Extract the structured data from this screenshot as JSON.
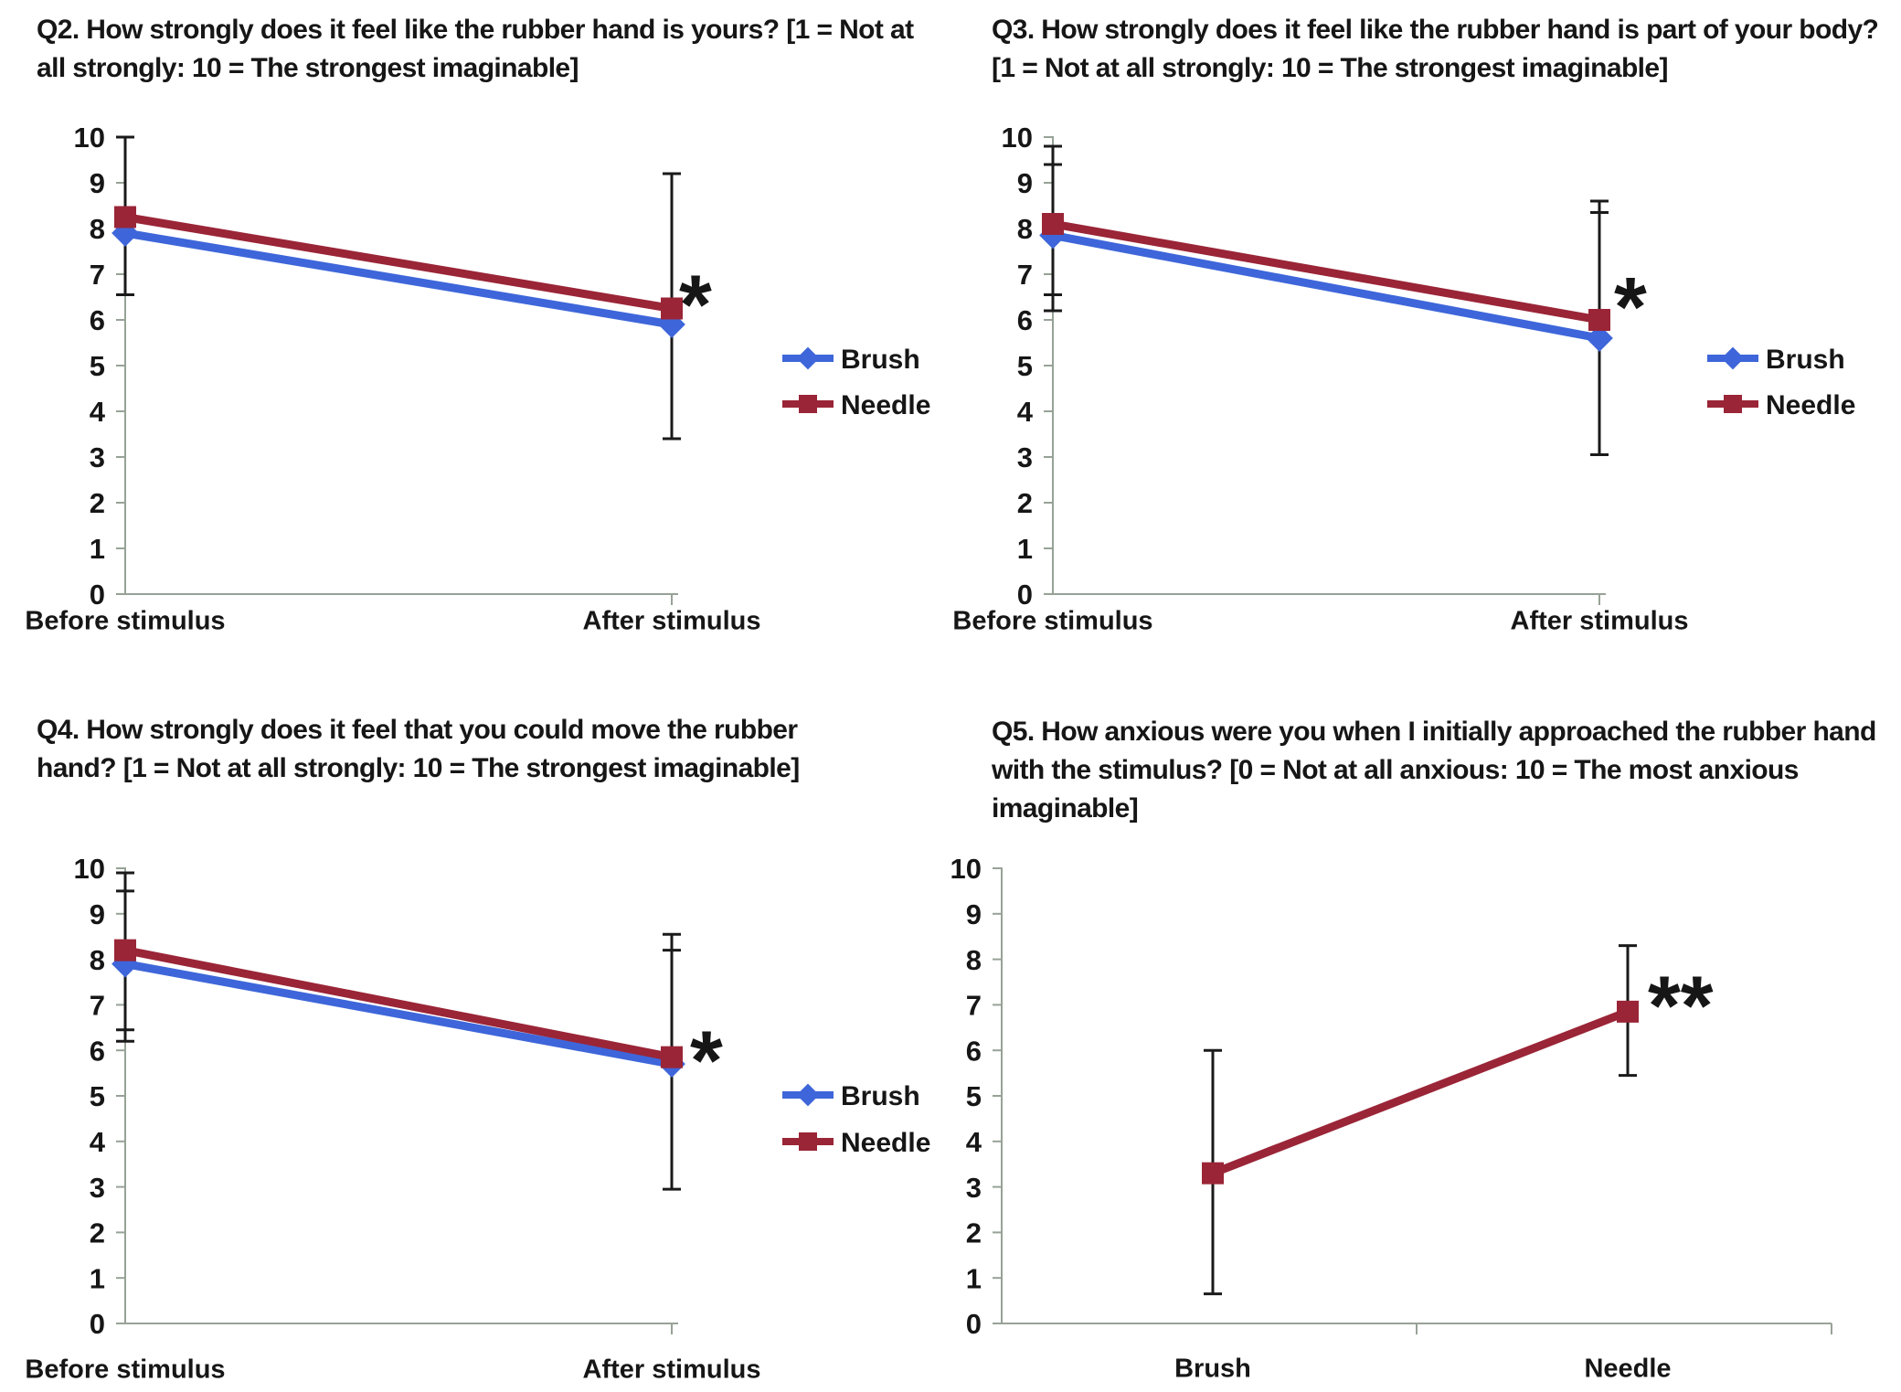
{
  "figure_name": "Rubber hand illusion questionnaire ratings",
  "colors": {
    "brush": "#3E66DA",
    "needle": "#9A2537",
    "axis": "#97A297",
    "error_bar": "#1A1A1A",
    "text": "#161616"
  },
  "chart_data": [
    {
      "type": "line",
      "title": "Q2. How strongly does it feel like the rubber hand is yours? [1 = Not at all strongly: 10 = The strongest imaginable]",
      "categories": [
        "Before stimulus",
        "After stimulus"
      ],
      "series": [
        {
          "name": "Brush",
          "marker": "diamond",
          "color_key": "brush",
          "values": [
            7.9,
            5.9
          ]
        },
        {
          "name": "Needle",
          "marker": "square",
          "color_key": "needle",
          "values": [
            8.25,
            6.25
          ]
        }
      ],
      "error_bars": [
        {
          "category_index": 0,
          "low": 6.55,
          "high": 10.0,
          "caps": [
            6.55,
            10.0
          ]
        },
        {
          "category_index": 1,
          "low": 3.4,
          "high": 9.2,
          "caps": [
            3.4,
            9.2
          ]
        }
      ],
      "significance": {
        "label": "*",
        "category_index": 1,
        "y": 6.8
      },
      "ylim": [
        0,
        10
      ],
      "yticks": [
        0,
        1,
        2,
        3,
        4,
        5,
        6,
        7,
        8,
        9,
        10
      ],
      "xlabel": "",
      "ylabel": "",
      "grid": false,
      "legend": true,
      "legend_position": "right-middle"
    },
    {
      "type": "line",
      "title": "Q3. How strongly does it feel like the rubber hand is part of your body? [1 = Not at all strongly: 10 = The strongest imaginable]",
      "categories": [
        "Before stimulus",
        "After stimulus"
      ],
      "series": [
        {
          "name": "Brush",
          "marker": "diamond",
          "color_key": "brush",
          "values": [
            7.85,
            5.6
          ]
        },
        {
          "name": "Needle",
          "marker": "square",
          "color_key": "needle",
          "values": [
            8.1,
            6.0
          ]
        }
      ],
      "error_bars": [
        {
          "category_index": 0,
          "low": 6.2,
          "high": 9.8,
          "caps": [
            6.2,
            6.55,
            9.4,
            9.8
          ]
        },
        {
          "category_index": 1,
          "low": 3.05,
          "high": 8.6,
          "caps": [
            3.05,
            8.35,
            8.6
          ]
        }
      ],
      "significance": {
        "label": "*",
        "category_index": 1,
        "y": 6.75
      },
      "ylim": [
        0,
        10
      ],
      "yticks": [
        0,
        1,
        2,
        3,
        4,
        5,
        6,
        7,
        8,
        9,
        10
      ],
      "xlabel": "",
      "ylabel": "",
      "grid": false,
      "legend": true,
      "legend_position": "right-middle"
    },
    {
      "type": "line",
      "title": "Q4. How strongly does it feel that you could move the rubber hand? [1 = Not at all strongly: 10 = The strongest imaginable]",
      "categories": [
        "Before stimulus",
        "After stimulus"
      ],
      "series": [
        {
          "name": "Brush",
          "marker": "diamond",
          "color_key": "brush",
          "values": [
            7.9,
            5.7
          ]
        },
        {
          "name": "Needle",
          "marker": "square",
          "color_key": "needle",
          "values": [
            8.2,
            5.85
          ]
        }
      ],
      "error_bars": [
        {
          "category_index": 0,
          "low": 6.2,
          "high": 9.9,
          "caps": [
            6.2,
            6.45,
            9.5,
            9.9
          ]
        },
        {
          "category_index": 1,
          "low": 2.95,
          "high": 8.55,
          "caps": [
            2.95,
            8.2,
            8.55
          ]
        }
      ],
      "significance": {
        "label": "*",
        "category_index": 1,
        "y": 6.25
      },
      "ylim": [
        0,
        10
      ],
      "yticks": [
        0,
        1,
        2,
        3,
        4,
        5,
        6,
        7,
        8,
        9,
        10
      ],
      "xlabel": "",
      "ylabel": "",
      "grid": false,
      "legend": true,
      "legend_position": "right-middle"
    },
    {
      "type": "line",
      "title": "Q5. How anxious were you when I initially approached the rubber hand with the stimulus? [0 = Not at all anxious: 10 = The most anxious imaginable]",
      "categories": [
        "Brush",
        "Needle"
      ],
      "series": [
        {
          "name": "Needle",
          "marker": "square",
          "color_key": "needle",
          "values": [
            3.3,
            6.85
          ]
        }
      ],
      "error_bars": [
        {
          "category_index": 0,
          "low": 0.65,
          "high": 6.0,
          "caps": [
            0.65,
            6.0
          ]
        },
        {
          "category_index": 1,
          "low": 5.45,
          "high": 8.3,
          "caps": [
            5.45,
            8.3
          ]
        }
      ],
      "significance": {
        "label": "**",
        "category_index": 1,
        "y": 7.45
      },
      "ylim": [
        0,
        10
      ],
      "yticks": [
        0,
        1,
        2,
        3,
        4,
        5,
        6,
        7,
        8,
        9,
        10
      ],
      "xlabel": "",
      "ylabel": "",
      "grid": false,
      "legend": false,
      "legend_position": null
    }
  ]
}
